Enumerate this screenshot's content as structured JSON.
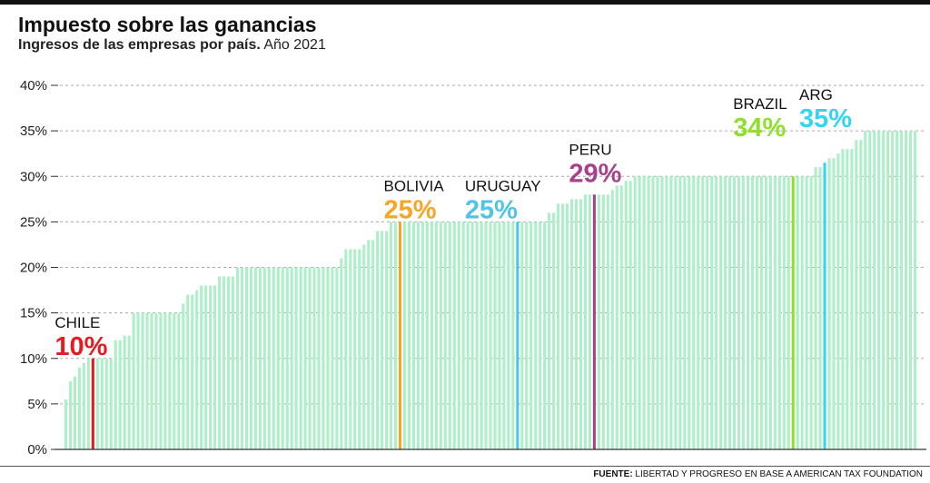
{
  "header": {
    "title": "Impuesto sobre las ganancias",
    "subtitle_bold": "Ingresos de las empresas por país.",
    "subtitle_rest": " Año 2021"
  },
  "footer": {
    "source_label": "FUENTE:",
    "source_text": " LIBERTAD Y PROGRESO EN BASE A AMERICAN TAX FOUNDATION"
  },
  "colors": {
    "bar": "#aeefc9",
    "grid": "#aaaaaa",
    "axis": "#333333"
  },
  "chart_data": {
    "type": "bar",
    "title": "Impuesto sobre las ganancias",
    "subtitle": "Ingresos de las empresas por país. Año 2021",
    "ylim": [
      0,
      40
    ],
    "yticks": [
      "0%",
      "5%",
      "10%",
      "15%",
      "20%",
      "25%",
      "30%",
      "35%",
      "40%"
    ],
    "grid": true,
    "values": [
      5.5,
      7.5,
      8,
      9,
      9.5,
      10,
      10,
      10,
      10,
      10,
      10,
      12,
      12,
      12.5,
      12.5,
      15,
      15,
      15,
      15,
      15,
      15,
      15,
      15,
      15,
      15,
      15,
      16,
      17,
      17,
      17.5,
      18,
      18,
      18,
      18,
      19,
      19,
      19,
      19,
      20,
      20,
      20,
      20,
      20,
      20,
      20,
      20,
      20,
      20,
      20,
      20,
      20,
      20,
      20,
      20,
      20,
      20,
      20,
      20,
      20,
      20,
      20,
      21,
      22,
      22,
      22,
      22,
      22.5,
      23,
      23,
      24,
      24,
      24,
      25,
      25,
      25,
      25,
      25,
      25,
      25,
      25,
      25,
      25,
      25,
      25,
      25,
      25,
      25,
      25,
      25,
      25,
      25,
      25,
      25,
      25,
      25,
      25,
      25,
      25,
      25,
      25,
      25,
      25,
      25,
      25,
      25,
      25,
      25,
      26,
      26,
      27,
      27,
      27,
      27.5,
      27.5,
      27.5,
      28,
      28,
      28,
      28,
      28,
      28,
      28.5,
      29,
      29,
      29.5,
      29.5,
      30,
      30,
      30,
      30,
      30,
      30,
      30,
      30,
      30,
      30,
      30,
      30,
      30,
      30,
      30,
      30,
      30,
      30,
      30,
      30,
      30,
      30,
      30,
      30,
      30,
      30,
      30,
      30,
      30,
      30,
      30,
      30,
      30,
      30,
      30,
      30,
      30,
      30,
      30,
      30,
      31,
      31,
      31.5,
      32,
      32,
      32.5,
      33,
      33,
      33,
      34,
      34,
      35,
      35,
      35,
      35,
      35,
      35,
      35,
      35,
      35,
      35,
      35,
      35
    ],
    "highlights": [
      {
        "country": "CHILE",
        "value": 10,
        "label": "10%",
        "color": "#e8191f",
        "index": 6
      },
      {
        "country": "BOLIVIA",
        "value": 25,
        "label": "25%",
        "color": "#f5a623",
        "index": 74
      },
      {
        "country": "URUGUAY",
        "value": 25,
        "label": "25%",
        "color": "#4fc3e8",
        "index": 100
      },
      {
        "country": "PERU",
        "value": 29,
        "label": "29%",
        "color": "#a8418c",
        "index": 117
      },
      {
        "country": "BRAZIL",
        "value": 34,
        "label": "34%",
        "color": "#8ee02a",
        "index": 161
      },
      {
        "country": "ARG",
        "value": 35,
        "label": "35%",
        "color": "#33d6ee",
        "index": 168
      }
    ]
  }
}
